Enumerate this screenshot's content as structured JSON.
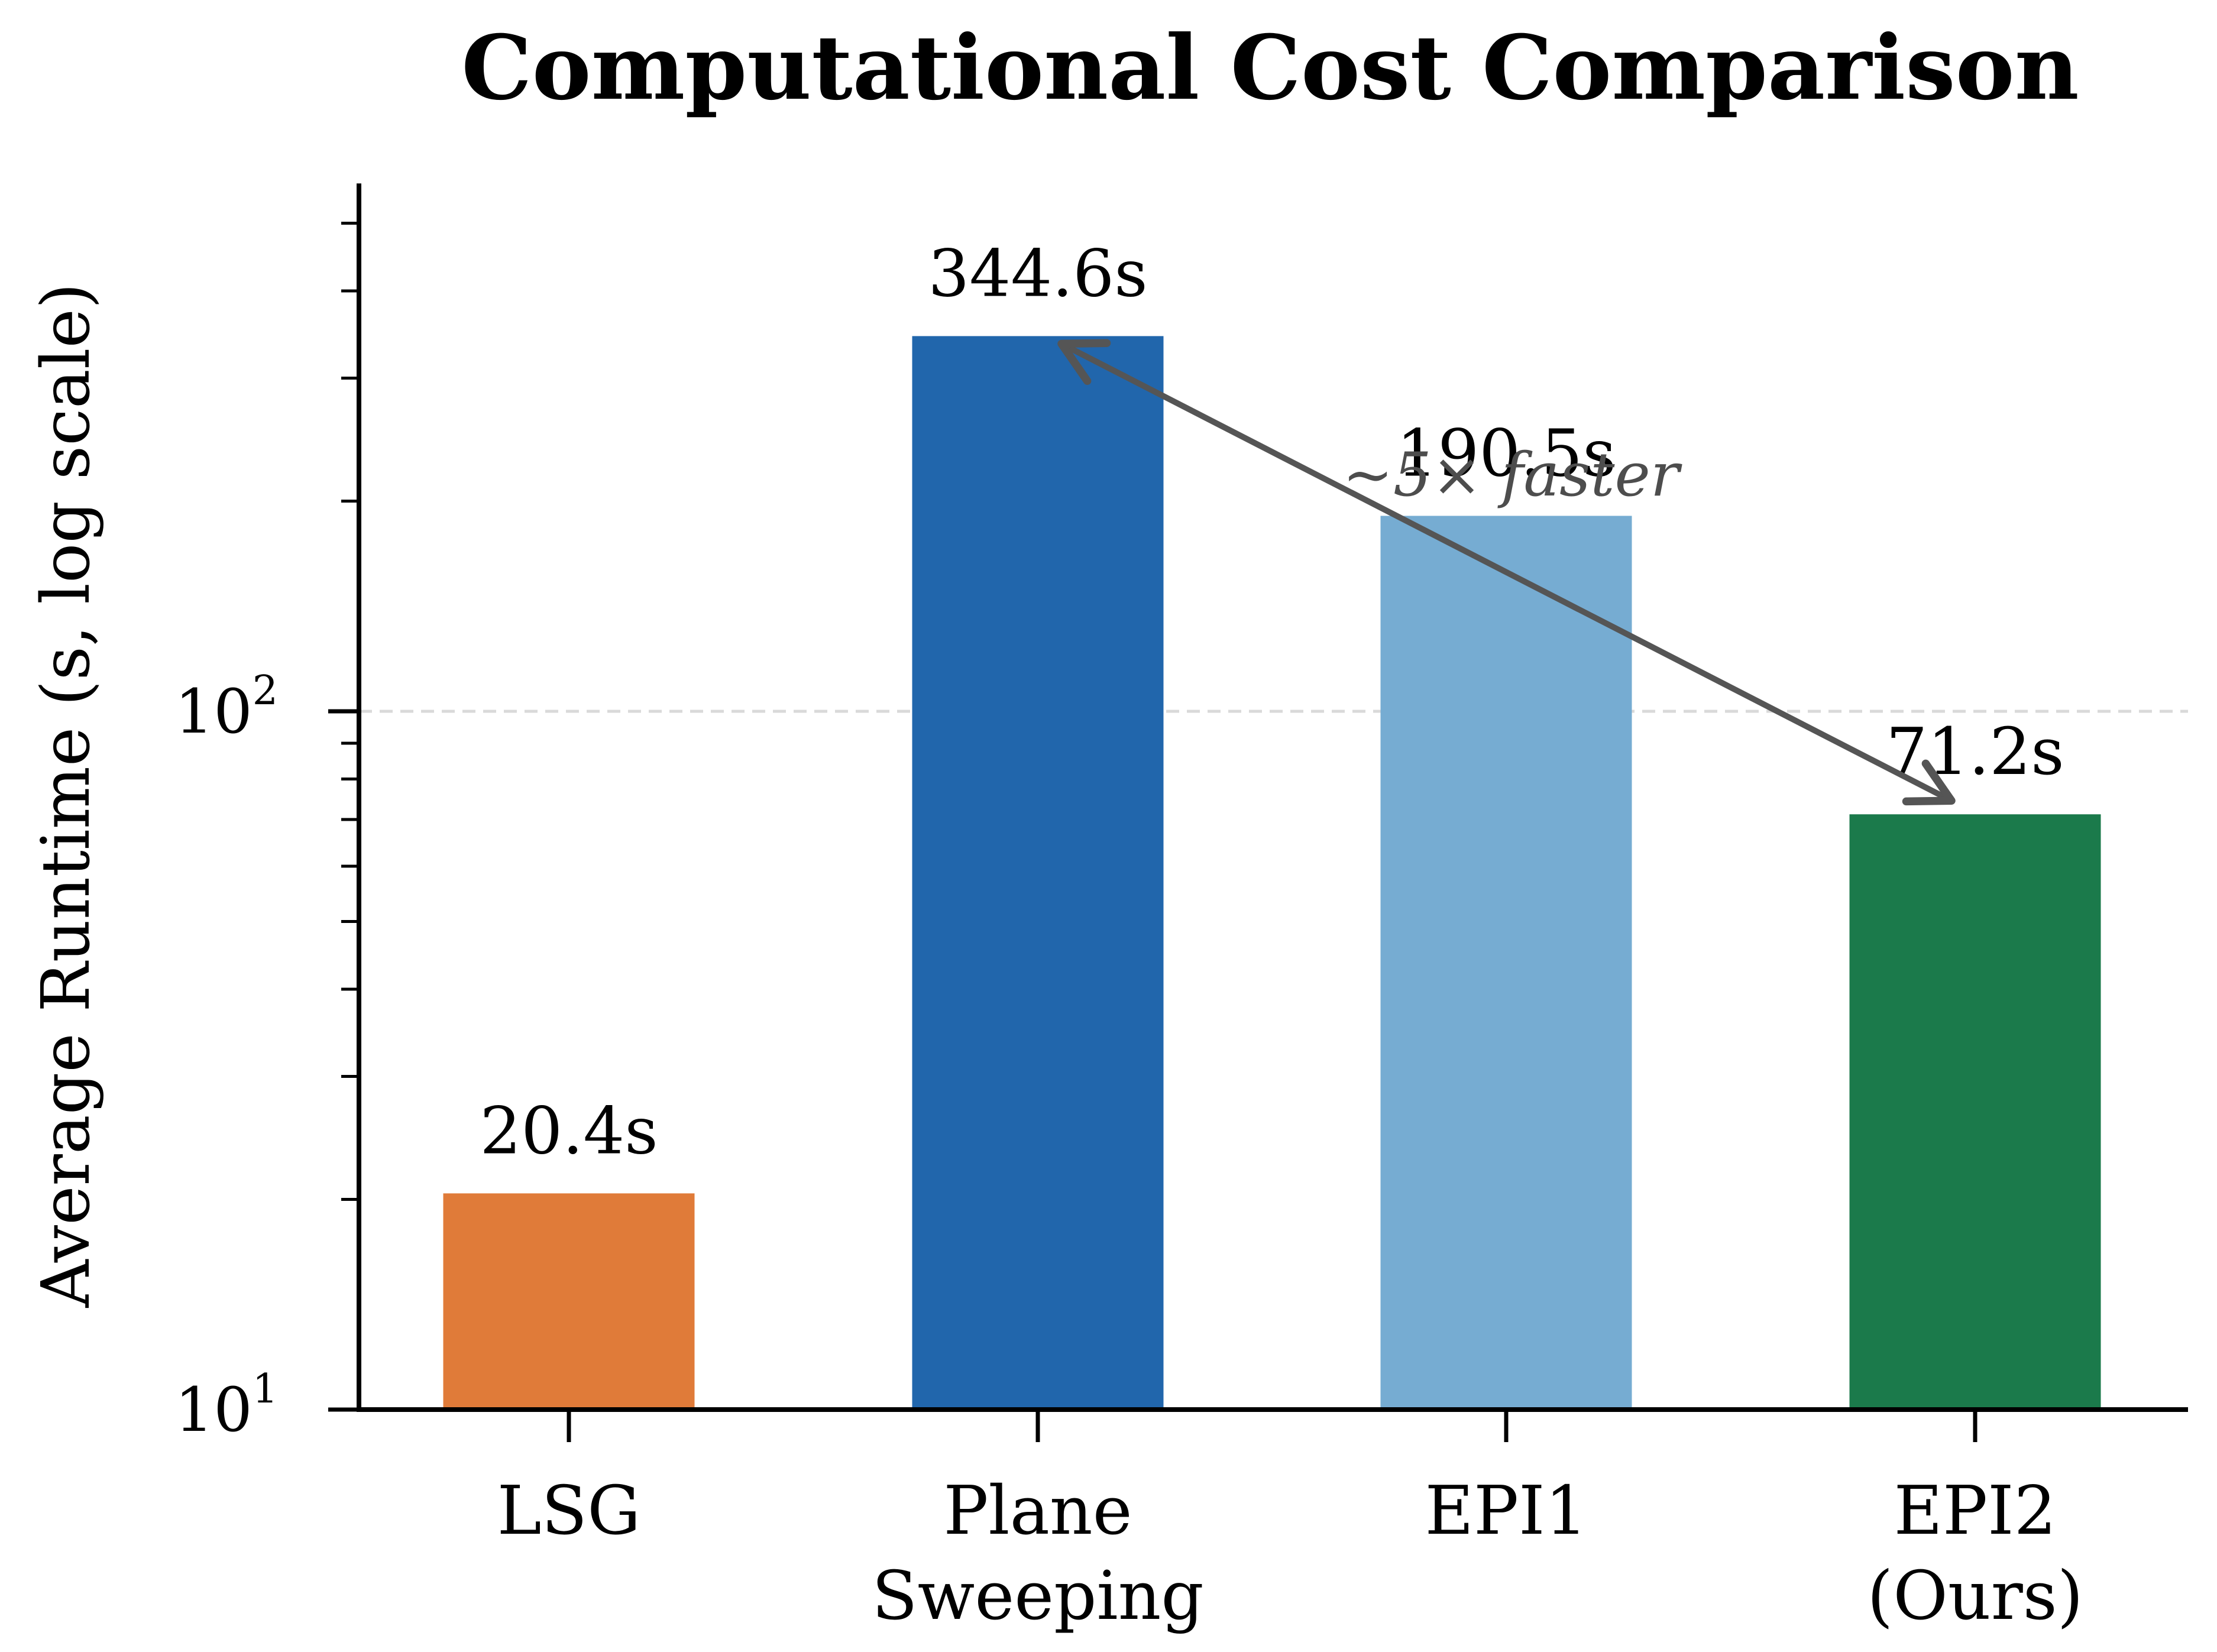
{
  "chart_data": {
    "type": "bar",
    "title": "Computational Cost Comparison",
    "xlabel": "",
    "ylabel": "Average Runtime (s, log scale)",
    "yscale": "log",
    "ylim": [
      10,
      570
    ],
    "y_major_ticks": [
      {
        "value": 10,
        "base": "10",
        "exp": "1"
      },
      {
        "value": 100,
        "base": "10",
        "exp": "2"
      }
    ],
    "y_minor_ticks": [
      20,
      30,
      40,
      50,
      60,
      70,
      80,
      90,
      200,
      300,
      400,
      500
    ],
    "grid": "dashed horizontal line at 10^2",
    "categories": [
      [
        "LSG"
      ],
      [
        "Plane",
        "Sweeping"
      ],
      [
        "EPI1"
      ],
      [
        "EPI2",
        "(Ours)"
      ]
    ],
    "values": [
      20.4,
      344.6,
      190.5,
      71.2
    ],
    "data_labels": [
      "20.4s",
      "344.6s",
      "190.5s",
      "71.2s"
    ],
    "colors": [
      "#e07b39",
      "#2166ac",
      "#76acd2",
      "#1b7a4b"
    ],
    "annotation": {
      "text": "~5× faster",
      "from_category": 3,
      "to_category": 1,
      "color": "#555555"
    }
  }
}
